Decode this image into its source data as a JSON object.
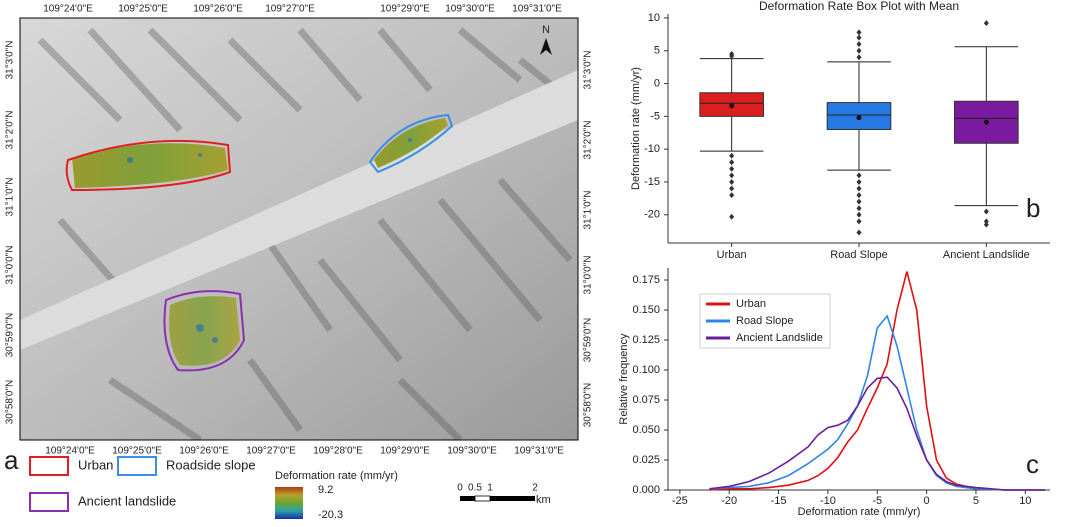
{
  "map": {
    "label": "a",
    "north": "N",
    "top_labels": [
      "109°24'0\"E",
      "109°25'0\"E",
      "109°26'0\"E",
      "109°27'0\"E",
      "109°29'0\"E",
      "109°30'0\"E",
      "109°31'0\"E"
    ],
    "bottom_labels": [
      "109°24'0\"E",
      "109°25'0\"E",
      "109°26'0\"E",
      "109°27'0\"E",
      "109°28'0\"E",
      "109°29'0\"E",
      "109°30'0\"E",
      "109°31'0\"E"
    ],
    "left_labels": [
      "31°3'0\"N",
      "31°2'0\"N",
      "31°1'0\"N",
      "31°0'0\"N",
      "30°59'0\"N",
      "30°58'0\"N"
    ],
    "right_labels": [
      "31°3'0\"N",
      "31°2'0\"N",
      "31°1'0\"N",
      "31°0'0\"N",
      "30°59'0\"N",
      "30°58'0\"N"
    ],
    "legend": [
      {
        "name": "Urban",
        "color": "#e02020"
      },
      {
        "name": "Roadside slope",
        "color": "#3a8ee6"
      },
      {
        "name": "Ancient landslide",
        "color": "#8b2fb0"
      }
    ],
    "colorbar": {
      "title": "Deformation rate (mm/yr)",
      "max": 9.2,
      "min": -20.3
    },
    "scale_bar": {
      "labels": [
        "0",
        "0.5",
        "1",
        "2"
      ],
      "unit": "km"
    }
  },
  "chart_data": [
    {
      "type": "box",
      "title": "Deformation Rate Box Plot with Mean",
      "label": "b",
      "y_label": "Deformation rate (mm/yr)",
      "categories": [
        "Urban",
        "Road Slope",
        "Ancient Landslide"
      ],
      "colors": [
        "#d91f1f",
        "#2479e3",
        "#7a1a9e"
      ],
      "whisker_low": [
        -10.3,
        -13.2,
        -18.6
      ],
      "q1": [
        -5,
        -7,
        -9.1
      ],
      "median": [
        -3,
        -4.8,
        -5.3
      ],
      "q3": [
        -1.4,
        -2.9,
        -2.7
      ],
      "whisker_high": [
        3.8,
        3.3,
        5.6
      ],
      "mean": [
        -3.4,
        -5.2,
        -5.9
      ],
      "outliers": [
        [
          -11,
          -12,
          -13,
          -14,
          -15,
          -16,
          -17,
          -20.3,
          4.2,
          4.5
        ],
        [
          -14,
          -15,
          -16,
          -17,
          -18,
          -19,
          -20,
          -21,
          -22.7,
          4,
          5,
          6,
          7,
          7.8
        ],
        [
          -19.5,
          -21,
          -21.5,
          9.2
        ]
      ],
      "ylim": [
        -24.3,
        10.6
      ],
      "yticks": [
        10,
        5,
        0,
        -5,
        -10,
        -15,
        -20
      ]
    },
    {
      "type": "line",
      "label": "c",
      "x_label": "Deformation rate (mm/yr)",
      "y_label": "Relative frequency",
      "x": [
        -22,
        -20,
        -18,
        -16,
        -14,
        -12,
        -11,
        -10,
        -9,
        -8,
        -7,
        -6,
        -5,
        -4,
        -3,
        -2,
        -1,
        0,
        1,
        2,
        3,
        5,
        8,
        12
      ],
      "series": [
        {
          "name": "Urban",
          "color": "#e01010",
          "values": [
            0,
            0.001,
            0.001,
            0.002,
            0.004,
            0.008,
            0.012,
            0.018,
            0.027,
            0.04,
            0.05,
            0.068,
            0.085,
            0.105,
            0.15,
            0.182,
            0.15,
            0.07,
            0.025,
            0.01,
            0.005,
            0.001,
            0,
            0
          ]
        },
        {
          "name": "Road Slope",
          "color": "#2f86e8",
          "values": [
            0.001,
            0.002,
            0.003,
            0.006,
            0.012,
            0.022,
            0.028,
            0.034,
            0.042,
            0.055,
            0.07,
            0.095,
            0.135,
            0.145,
            0.12,
            0.085,
            0.05,
            0.025,
            0.012,
            0.006,
            0.003,
            0.001,
            0,
            0
          ]
        },
        {
          "name": "Ancient Landslide",
          "color": "#6a1f9a",
          "values": [
            0.001,
            0.003,
            0.007,
            0.014,
            0.024,
            0.036,
            0.046,
            0.052,
            0.054,
            0.058,
            0.07,
            0.085,
            0.093,
            0.094,
            0.085,
            0.068,
            0.045,
            0.025,
            0.013,
            0.007,
            0.004,
            0.002,
            0,
            0
          ]
        }
      ],
      "xlim": [
        -26.2,
        12.5
      ],
      "xticks": [
        -25,
        -20,
        -15,
        -10,
        -5,
        0,
        5,
        10
      ],
      "ylim": [
        0,
        0.185
      ],
      "yticks": [
        {
          "value": 0,
          "label": "0.000"
        },
        {
          "value": 0.025,
          "label": "0.025"
        },
        {
          "value": 0.05,
          "label": "0.050"
        },
        {
          "value": 0.075,
          "label": "0.075"
        },
        {
          "value": 0.1,
          "label": "0.100"
        },
        {
          "value": 0.125,
          "label": "0.125"
        },
        {
          "value": 0.15,
          "label": "0.150"
        },
        {
          "value": 0.175,
          "label": "0.175"
        }
      ],
      "legend": "upper left"
    }
  ]
}
